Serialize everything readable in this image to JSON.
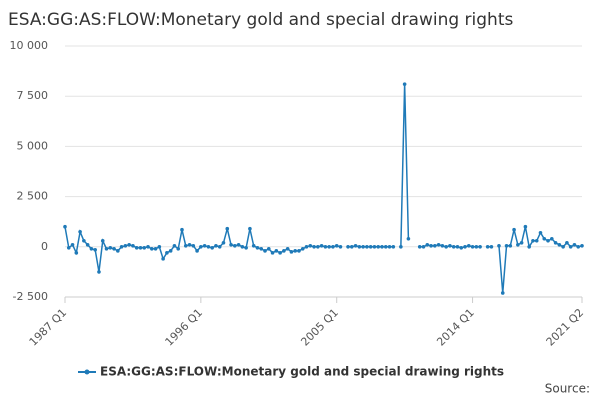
{
  "chart_data": {
    "type": "line",
    "title": "ESA:GG:AS:FLOW:Monetary gold and special drawing rights",
    "source": "Source:",
    "categories": [
      "1987 Q1",
      null,
      null,
      null,
      null,
      null,
      null,
      null,
      null,
      null,
      null,
      null,
      null,
      null,
      null,
      null,
      null,
      null,
      null,
      null,
      null,
      null,
      null,
      null,
      null,
      null,
      null,
      null,
      null,
      null,
      null,
      null,
      null,
      null,
      null,
      null,
      "1996 Q1",
      null,
      null,
      null,
      null,
      null,
      null,
      null,
      null,
      null,
      null,
      null,
      null,
      null,
      null,
      null,
      null,
      null,
      null,
      null,
      null,
      null,
      null,
      null,
      null,
      null,
      null,
      null,
      null,
      null,
      null,
      null,
      null,
      null,
      null,
      null,
      "2005 Q1",
      null,
      null,
      null,
      null,
      null,
      null,
      null,
      null,
      null,
      null,
      null,
      null,
      null,
      null,
      null,
      null,
      null,
      null,
      null,
      null,
      null,
      null,
      null,
      null,
      null,
      null,
      null,
      null,
      null,
      null,
      null,
      null,
      null,
      null,
      null,
      "2014 Q1",
      null,
      null,
      null,
      null,
      null,
      null,
      null,
      null,
      null,
      null,
      null,
      null,
      null,
      null,
      null,
      null,
      null,
      null,
      null,
      null,
      null,
      null,
      null,
      null,
      null,
      null,
      null,
      null,
      "2021 Q2"
    ],
    "series": [
      {
        "name": "ESA:GG:AS:FLOW:Monetary gold and special drawing rights",
        "color": "#1f7ab8",
        "values": [
          1000,
          -50,
          100,
          -300,
          750,
          300,
          100,
          -100,
          -150,
          -1250,
          300,
          -100,
          -50,
          -100,
          -200,
          0,
          50,
          100,
          50,
          -50,
          -50,
          -50,
          0,
          -100,
          -100,
          0,
          -600,
          -300,
          -200,
          50,
          -100,
          850,
          50,
          100,
          50,
          -200,
          0,
          50,
          0,
          -50,
          50,
          0,
          200,
          900,
          100,
          50,
          100,
          0,
          -50,
          900,
          50,
          -50,
          -100,
          -200,
          -100,
          -300,
          -200,
          -300,
          -200,
          -100,
          -250,
          -200,
          -200,
          -100,
          0,
          50,
          0,
          0,
          50,
          0,
          0,
          0,
          50,
          0,
          null,
          0,
          0,
          50,
          0,
          0,
          0,
          0,
          0,
          0,
          0,
          0,
          0,
          0,
          null,
          0,
          8100,
          400,
          null,
          null,
          0,
          0,
          100,
          50,
          50,
          100,
          50,
          0,
          50,
          0,
          0,
          -50,
          0,
          50,
          0,
          0,
          0,
          null,
          0,
          0,
          null,
          50,
          -2300,
          50,
          50,
          850,
          100,
          200,
          1000,
          0,
          300,
          300,
          700,
          400,
          300,
          400,
          200,
          100,
          0,
          200,
          0,
          100,
          0,
          50
        ]
      }
    ],
    "ylim": [
      -2500,
      10000
    ],
    "yticks": [
      {
        "value": -2500,
        "label": "-2 500"
      },
      0,
      {
        "value": 2500,
        "label": "2 500"
      },
      {
        "value": 5000,
        "label": "5 000"
      },
      {
        "value": 7500,
        "label": "7 500"
      },
      {
        "value": 10000,
        "label": "10 000"
      }
    ],
    "grid": true
  }
}
